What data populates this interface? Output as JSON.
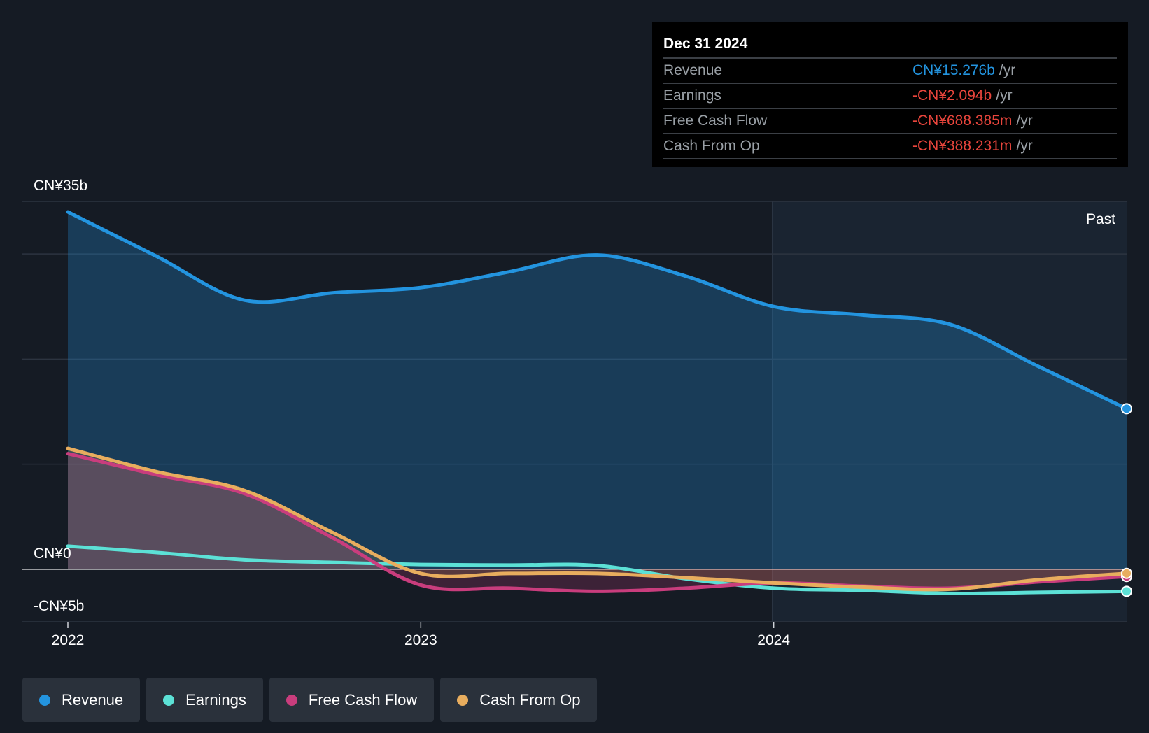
{
  "tooltip": {
    "date": "Dec 31 2024",
    "rows": [
      {
        "label": "Revenue",
        "value": "CN¥15.276b",
        "unit": "/yr",
        "color": "#2394df"
      },
      {
        "label": "Earnings",
        "value": "-CN¥2.094b",
        "unit": "/yr",
        "color": "#e8453c"
      },
      {
        "label": "Free Cash Flow",
        "value": "-CN¥688.385m",
        "unit": "/yr",
        "color": "#e8453c"
      },
      {
        "label": "Cash From Op",
        "value": "-CN¥388.231m",
        "unit": "/yr",
        "color": "#e8453c"
      }
    ]
  },
  "past_label": "Past",
  "legend": [
    {
      "label": "Revenue",
      "color": "#2394df"
    },
    {
      "label": "Earnings",
      "color": "#5ce1d6"
    },
    {
      "label": "Free Cash Flow",
      "color": "#c93d7d"
    },
    {
      "label": "Cash From Op",
      "color": "#e8ad5e"
    }
  ],
  "chart_data": {
    "type": "line",
    "y_tick_labels": [
      "CN¥35b",
      "CN¥0",
      "-CN¥5b"
    ],
    "x_tick_labels": [
      "2022",
      "2023",
      "2024"
    ],
    "ylim": [
      -5,
      35
    ],
    "xlim": [
      2022.0,
      2025.0
    ],
    "grid": true,
    "past_region_start": 2024.0,
    "series": [
      {
        "name": "Revenue",
        "color": "#2394df",
        "fill": true,
        "x": [
          2022.0,
          2022.25,
          2022.5,
          2022.75,
          2023.0,
          2023.25,
          2023.5,
          2023.75,
          2024.0,
          2024.25,
          2024.5,
          2024.75,
          2025.0
        ],
        "y": [
          34.0,
          29.8,
          25.6,
          26.3,
          26.8,
          28.3,
          29.9,
          27.9,
          25.0,
          24.2,
          23.3,
          19.3,
          15.276
        ]
      },
      {
        "name": "Earnings",
        "color": "#5ce1d6",
        "fill": false,
        "x": [
          2022.0,
          2022.25,
          2022.5,
          2022.75,
          2023.0,
          2023.25,
          2023.5,
          2023.75,
          2024.0,
          2024.25,
          2024.5,
          2024.75,
          2025.0
        ],
        "y": [
          2.2,
          1.6,
          0.9,
          0.65,
          0.45,
          0.4,
          0.35,
          -0.9,
          -1.8,
          -2.0,
          -2.3,
          -2.2,
          -2.094
        ]
      },
      {
        "name": "Free Cash Flow",
        "color": "#c93d7d",
        "fill": true,
        "x": [
          2022.0,
          2022.25,
          2022.5,
          2022.75,
          2023.0,
          2023.25,
          2023.5,
          2023.75,
          2024.0,
          2024.25,
          2024.5,
          2024.75,
          2025.0
        ],
        "y": [
          11.0,
          9.0,
          7.2,
          3.0,
          -1.5,
          -1.8,
          -2.1,
          -1.8,
          -1.3,
          -1.6,
          -1.8,
          -1.2,
          -0.688
        ]
      },
      {
        "name": "Cash From Op",
        "color": "#e8ad5e",
        "fill": true,
        "x": [
          2022.0,
          2022.25,
          2022.5,
          2022.75,
          2023.0,
          2023.25,
          2023.5,
          2023.75,
          2024.0,
          2024.25,
          2024.5,
          2024.75,
          2025.0
        ],
        "y": [
          11.5,
          9.3,
          7.5,
          3.5,
          -0.4,
          -0.4,
          -0.4,
          -0.8,
          -1.3,
          -1.7,
          -1.9,
          -1.0,
          -0.388
        ]
      }
    ]
  }
}
